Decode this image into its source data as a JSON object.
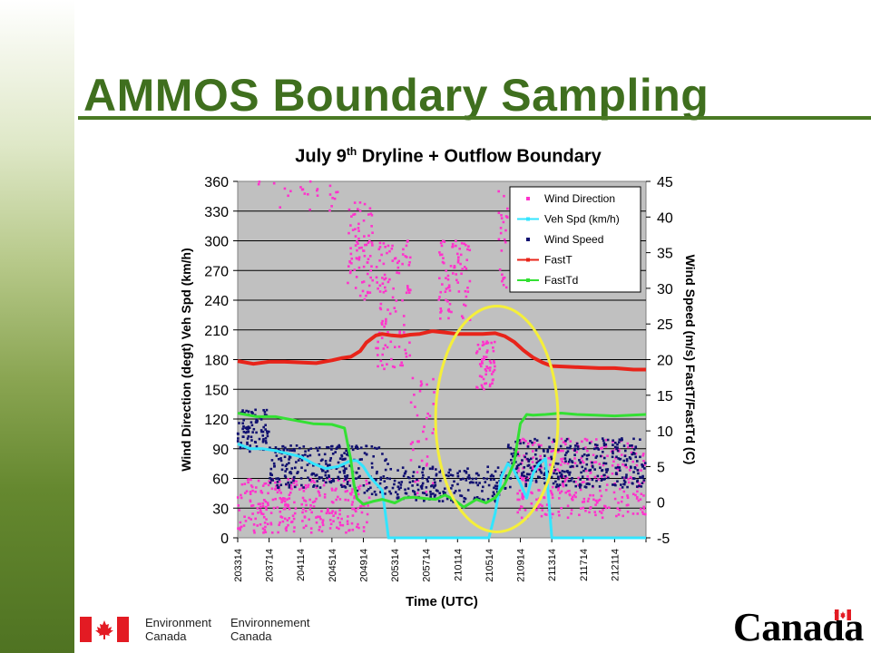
{
  "slide": {
    "title": "AMMOS Boundary Sampling"
  },
  "footer": {
    "dept_en": [
      "Environment",
      "Canada"
    ],
    "dept_fr": [
      "Environnement",
      "Canada"
    ],
    "wordmark": "Canada"
  },
  "chart_data": {
    "type": "line",
    "title_main": "July 9",
    "title_sup": "th",
    "title_rest": " Dryline + Outflow Boundary",
    "xlabel": "Time (UTC)",
    "ylabel_left": "Wind Direction (degt)  Veh Spd (km/h)",
    "ylabel_right": "Wind Speed (m/s)  FastT/FastTd (C)",
    "left_axis": {
      "min": 0,
      "max": 360,
      "ticks": [
        0,
        30,
        60,
        90,
        120,
        150,
        180,
        210,
        240,
        270,
        300,
        330,
        360
      ]
    },
    "right_axis": {
      "min": -5,
      "max": 45,
      "ticks": [
        -5,
        0,
        5,
        10,
        15,
        20,
        25,
        30,
        35,
        40,
        45
      ]
    },
    "x_categories": [
      "203314",
      "203714",
      "204114",
      "204514",
      "204914",
      "205314",
      "205714",
      "210114",
      "210514",
      "210914",
      "211314",
      "211714",
      "212114"
    ],
    "grid": true,
    "legend_position": "top-right",
    "legend": [
      {
        "name": "Wind Direction",
        "color": "#ff33cc",
        "style": "points"
      },
      {
        "name": "Veh Spd (km/h)",
        "color": "#33e5ff",
        "style": "line"
      },
      {
        "name": "Wind Speed",
        "color": "#101070",
        "style": "points"
      },
      {
        "name": "FastT",
        "color": "#e8241a",
        "style": "line"
      },
      {
        "name": "FastTd",
        "color": "#33e033",
        "style": "line"
      }
    ],
    "series": [
      {
        "name": "FastT",
        "axis": "right",
        "color": "#e8241a",
        "x": [
          0.0,
          0.5,
          1.0,
          1.5,
          2.0,
          2.5,
          3.0,
          3.3,
          3.6,
          3.9,
          4.1,
          4.4,
          4.6,
          4.9,
          5.2,
          5.5,
          5.8,
          6.2,
          6.6,
          7.0,
          7.4,
          7.8,
          8.2,
          8.5,
          8.8,
          9.1,
          9.4,
          9.7,
          10.0,
          10.5,
          11.0,
          11.5,
          12.0,
          12.6,
          13.0
        ],
        "y": [
          19.8,
          19.4,
          19.7,
          19.7,
          19.6,
          19.5,
          19.9,
          20.2,
          20.4,
          21.2,
          22.4,
          23.4,
          23.6,
          23.4,
          23.3,
          23.5,
          23.6,
          24.0,
          23.8,
          23.6,
          23.6,
          23.6,
          23.7,
          23.3,
          22.5,
          21.3,
          20.3,
          19.6,
          19.1,
          19.0,
          18.9,
          18.8,
          18.8,
          18.6,
          18.6
        ]
      },
      {
        "name": "FastTd",
        "axis": "right",
        "color": "#33e033",
        "x": [
          0.0,
          0.6,
          1.2,
          1.8,
          2.4,
          3.0,
          3.4,
          3.6,
          3.7,
          3.8,
          4.0,
          4.3,
          4.6,
          5.0,
          5.3,
          5.6,
          6.0,
          6.3,
          6.6,
          6.9,
          7.2,
          7.6,
          7.9,
          8.2,
          8.5,
          8.8,
          9.0,
          9.2,
          9.4,
          9.8,
          10.3,
          10.8,
          11.4,
          12.0,
          13.0
        ],
        "y": [
          12.5,
          12.0,
          12.0,
          11.5,
          11.0,
          10.9,
          10.4,
          6.0,
          2.5,
          0.5,
          -0.3,
          0.1,
          0.4,
          -0.1,
          0.6,
          0.7,
          0.5,
          0.4,
          1.0,
          0.3,
          -0.7,
          0.4,
          -0.1,
          0.6,
          2.5,
          5.5,
          11.0,
          12.3,
          12.2,
          12.3,
          12.5,
          12.3,
          12.2,
          12.1,
          12.3
        ]
      },
      {
        "name": "Veh Spd (km/h)",
        "axis": "left",
        "color": "#33e5ff",
        "x": [
          0.0,
          0.4,
          0.8,
          1.2,
          1.6,
          2.0,
          2.4,
          2.8,
          3.2,
          3.6,
          3.8,
          4.0,
          4.2,
          4.4,
          4.6,
          4.7,
          4.8,
          5.0,
          5.2,
          5.6,
          6.0,
          6.4,
          6.8,
          7.2,
          7.6,
          8.0,
          8.2,
          8.4,
          8.6,
          8.8,
          9.0,
          9.2,
          9.4,
          9.6,
          9.8,
          9.9,
          10.0,
          10.5,
          11.0,
          12.0,
          13.0
        ],
        "y": [
          95,
          90,
          90,
          88,
          85,
          82,
          75,
          70,
          72,
          78,
          78,
          72,
          62,
          55,
          48,
          25,
          0,
          0,
          0,
          0,
          0,
          0,
          0,
          0,
          0,
          0,
          25,
          62,
          75,
          68,
          55,
          40,
          65,
          75,
          80,
          40,
          0,
          0,
          0,
          0,
          0
        ]
      }
    ],
    "scatter_series": [
      {
        "name": "Wind Direction",
        "axis": "left",
        "color": "#ff33cc",
        "clusters": [
          {
            "x0": 0.0,
            "x1": 4.2,
            "y0": 5,
            "y1": 60,
            "n": 300
          },
          {
            "x0": 0.0,
            "x1": 3.2,
            "y0": 330,
            "y1": 360,
            "n": 25
          },
          {
            "x0": 3.5,
            "x1": 4.3,
            "y0": 240,
            "y1": 340,
            "n": 80
          },
          {
            "x0": 4.4,
            "x1": 5.5,
            "y0": 170,
            "y1": 300,
            "n": 110
          },
          {
            "x0": 5.5,
            "x1": 6.3,
            "y0": 40,
            "y1": 170,
            "n": 40
          },
          {
            "x0": 6.4,
            "x1": 7.4,
            "y0": 220,
            "y1": 300,
            "n": 80
          },
          {
            "x0": 7.6,
            "x1": 8.2,
            "y0": 150,
            "y1": 200,
            "n": 55
          },
          {
            "x0": 8.3,
            "x1": 8.6,
            "y0": 250,
            "y1": 350,
            "n": 25
          },
          {
            "x0": 8.9,
            "x1": 13.0,
            "y0": 20,
            "y1": 100,
            "n": 320
          }
        ]
      },
      {
        "name": "Wind Speed",
        "axis": "right",
        "color": "#101070",
        "clusters": [
          {
            "x0": 0.0,
            "x1": 1.0,
            "y0": 7,
            "y1": 13,
            "n": 90
          },
          {
            "x0": 1.0,
            "x1": 3.6,
            "y0": 2,
            "y1": 8,
            "n": 200
          },
          {
            "x0": 3.6,
            "x1": 5.0,
            "y0": 1,
            "y1": 8,
            "n": 70
          },
          {
            "x0": 5.0,
            "x1": 8.6,
            "y0": 0,
            "y1": 5,
            "n": 190
          },
          {
            "x0": 8.6,
            "x1": 13.0,
            "y0": 2,
            "y1": 9,
            "n": 330
          }
        ]
      }
    ],
    "annotation": {
      "shape": "ellipse",
      "color": "#f5ef3a",
      "x_center": 8.25,
      "y_center_left": 120,
      "x_radius": 1.95,
      "y_radius_left": 114
    }
  }
}
